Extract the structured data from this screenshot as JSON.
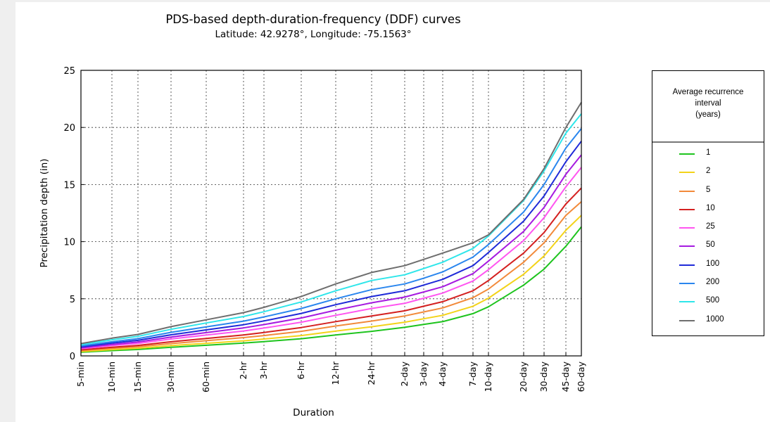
{
  "chart_data": {
    "type": "line",
    "title": "PDS-based depth-duration-frequency (DDF) curves",
    "subtitle": "Latitude: 42.9278°, Longitude: -75.1563°",
    "xlabel": "Duration",
    "ylabel": "Precipitation depth (in)",
    "ylim": [
      0,
      25
    ],
    "yticks": [
      0,
      5,
      10,
      15,
      20,
      25
    ],
    "grid": true,
    "categories": [
      "5-min",
      "10-min",
      "15-min",
      "30-min",
      "60-min",
      "2-hr",
      "3-hr",
      "6-hr",
      "12-hr",
      "24-hr",
      "2-day",
      "3-day",
      "4-day",
      "7-day",
      "10-day",
      "20-day",
      "30-day",
      "45-day",
      "60-day"
    ],
    "legend": {
      "title_lines": [
        "Average recurrence",
        "interval",
        "(years)"
      ],
      "position": "right"
    },
    "series": [
      {
        "name": "1",
        "color": "#1ec41e",
        "values": [
          0.32,
          0.46,
          0.56,
          0.75,
          0.93,
          1.12,
          1.25,
          1.5,
          1.83,
          2.15,
          2.5,
          2.75,
          3.0,
          3.7,
          4.3,
          6.2,
          7.6,
          9.6,
          11.3
        ]
      },
      {
        "name": "2",
        "color": "#f3d31a",
        "values": [
          0.38,
          0.55,
          0.67,
          0.9,
          1.1,
          1.32,
          1.48,
          1.78,
          2.17,
          2.55,
          2.95,
          3.25,
          3.55,
          4.35,
          5.05,
          7.15,
          8.75,
          11.0,
          12.3
        ]
      },
      {
        "name": "5",
        "color": "#f28a3a",
        "values": [
          0.46,
          0.66,
          0.8,
          1.08,
          1.33,
          1.6,
          1.78,
          2.15,
          2.62,
          3.05,
          3.5,
          3.85,
          4.2,
          5.1,
          5.85,
          8.2,
          9.9,
          12.3,
          13.5
        ]
      },
      {
        "name": "10",
        "color": "#d42020",
        "values": [
          0.53,
          0.76,
          0.92,
          1.24,
          1.53,
          1.83,
          2.05,
          2.48,
          3.0,
          3.5,
          3.95,
          4.35,
          4.75,
          5.7,
          6.6,
          9.0,
          10.8,
          13.3,
          14.7
        ]
      },
      {
        "name": "25",
        "color": "#ff55f0",
        "values": [
          0.63,
          0.9,
          1.09,
          1.48,
          1.82,
          2.18,
          2.44,
          2.95,
          3.55,
          4.15,
          4.6,
          5.05,
          5.5,
          6.55,
          7.55,
          10.1,
          12.1,
          14.8,
          16.5
        ]
      },
      {
        "name": "50",
        "color": "#a61be0",
        "values": [
          0.7,
          1.0,
          1.22,
          1.65,
          2.04,
          2.45,
          2.74,
          3.32,
          4.0,
          4.65,
          5.15,
          5.6,
          6.05,
          7.2,
          8.3,
          10.9,
          13.0,
          15.9,
          17.6
        ]
      },
      {
        "name": "100",
        "color": "#1f2ad8",
        "values": [
          0.78,
          1.12,
          1.36,
          1.85,
          2.28,
          2.73,
          3.06,
          3.72,
          4.48,
          5.2,
          5.7,
          6.2,
          6.7,
          7.9,
          9.05,
          11.8,
          14.0,
          17.0,
          18.8
        ]
      },
      {
        "name": "200",
        "color": "#2a86ee",
        "values": [
          0.87,
          1.24,
          1.51,
          2.06,
          2.54,
          3.04,
          3.41,
          4.15,
          5.0,
          5.8,
          6.3,
          6.8,
          7.35,
          8.65,
          9.75,
          12.6,
          15.0,
          18.2,
          19.9
        ]
      },
      {
        "name": "500",
        "color": "#2ee6ea",
        "values": [
          0.98,
          1.41,
          1.71,
          2.33,
          2.88,
          3.45,
          3.87,
          4.72,
          5.7,
          6.6,
          7.1,
          7.65,
          8.2,
          9.4,
          10.5,
          13.6,
          16.2,
          19.5,
          21.2
        ]
      },
      {
        "name": "1000",
        "color": "#6e6e6e",
        "values": [
          1.08,
          1.55,
          1.88,
          2.56,
          3.16,
          3.79,
          4.25,
          5.2,
          6.3,
          7.3,
          7.9,
          8.45,
          9.0,
          9.9,
          10.6,
          13.7,
          16.4,
          20.0,
          22.2
        ]
      }
    ]
  }
}
